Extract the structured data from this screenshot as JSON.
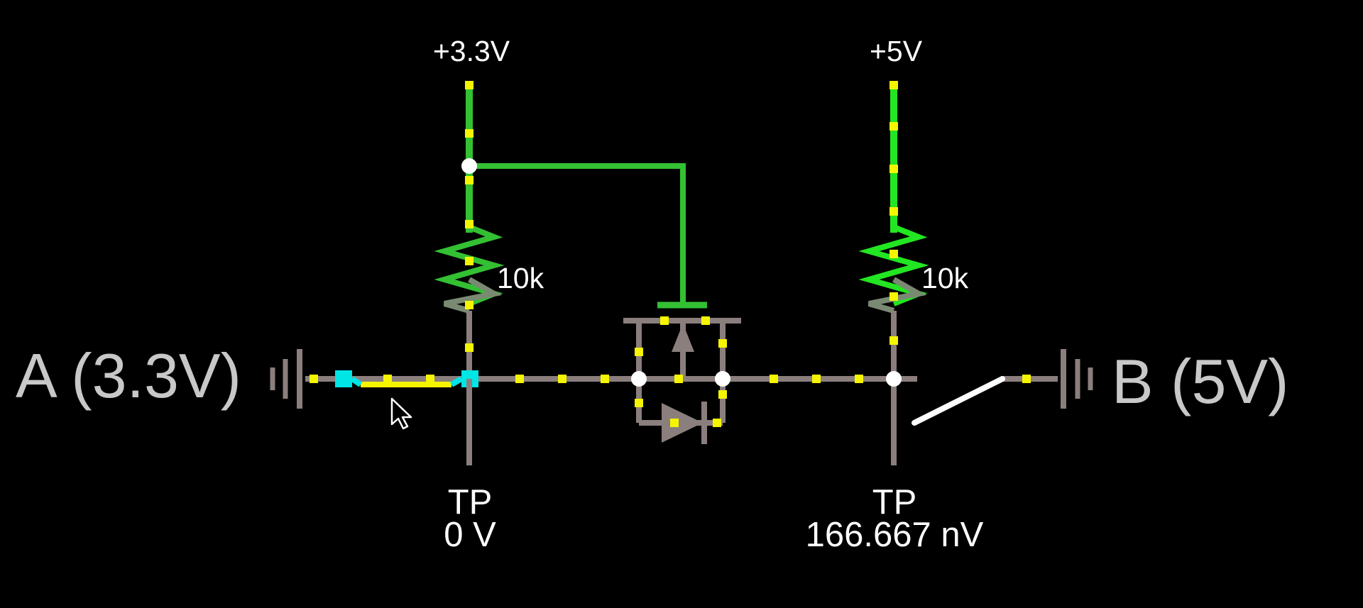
{
  "rails": {
    "low_supply_label": "+3.3V",
    "high_supply_label": "+5V"
  },
  "resistors": {
    "left_value": "10k",
    "right_value": "10k"
  },
  "sources": {
    "left_label": "A (3.3V)",
    "right_label": "B (5V)"
  },
  "test_points": {
    "left": {
      "title": "TP",
      "reading": "0 V"
    },
    "right": {
      "title": "TP",
      "reading": "166.667 nV"
    }
  },
  "colors": {
    "background": "#000000",
    "wire_idle": "#8a7f7d",
    "wire_high": "#33c033",
    "wire_bright": "#22e622",
    "current_dot": "#f5f500",
    "selected": "#00e5e5",
    "highlight_wire": "#f5f500",
    "node": "#ffffff"
  },
  "icons": {
    "cursor": "mouse-pointer-icon",
    "switch": "open-switch-icon",
    "mosfet": "n-channel-mosfet-icon",
    "diode": "body-diode-icon",
    "battery": "voltage-source-icon"
  }
}
